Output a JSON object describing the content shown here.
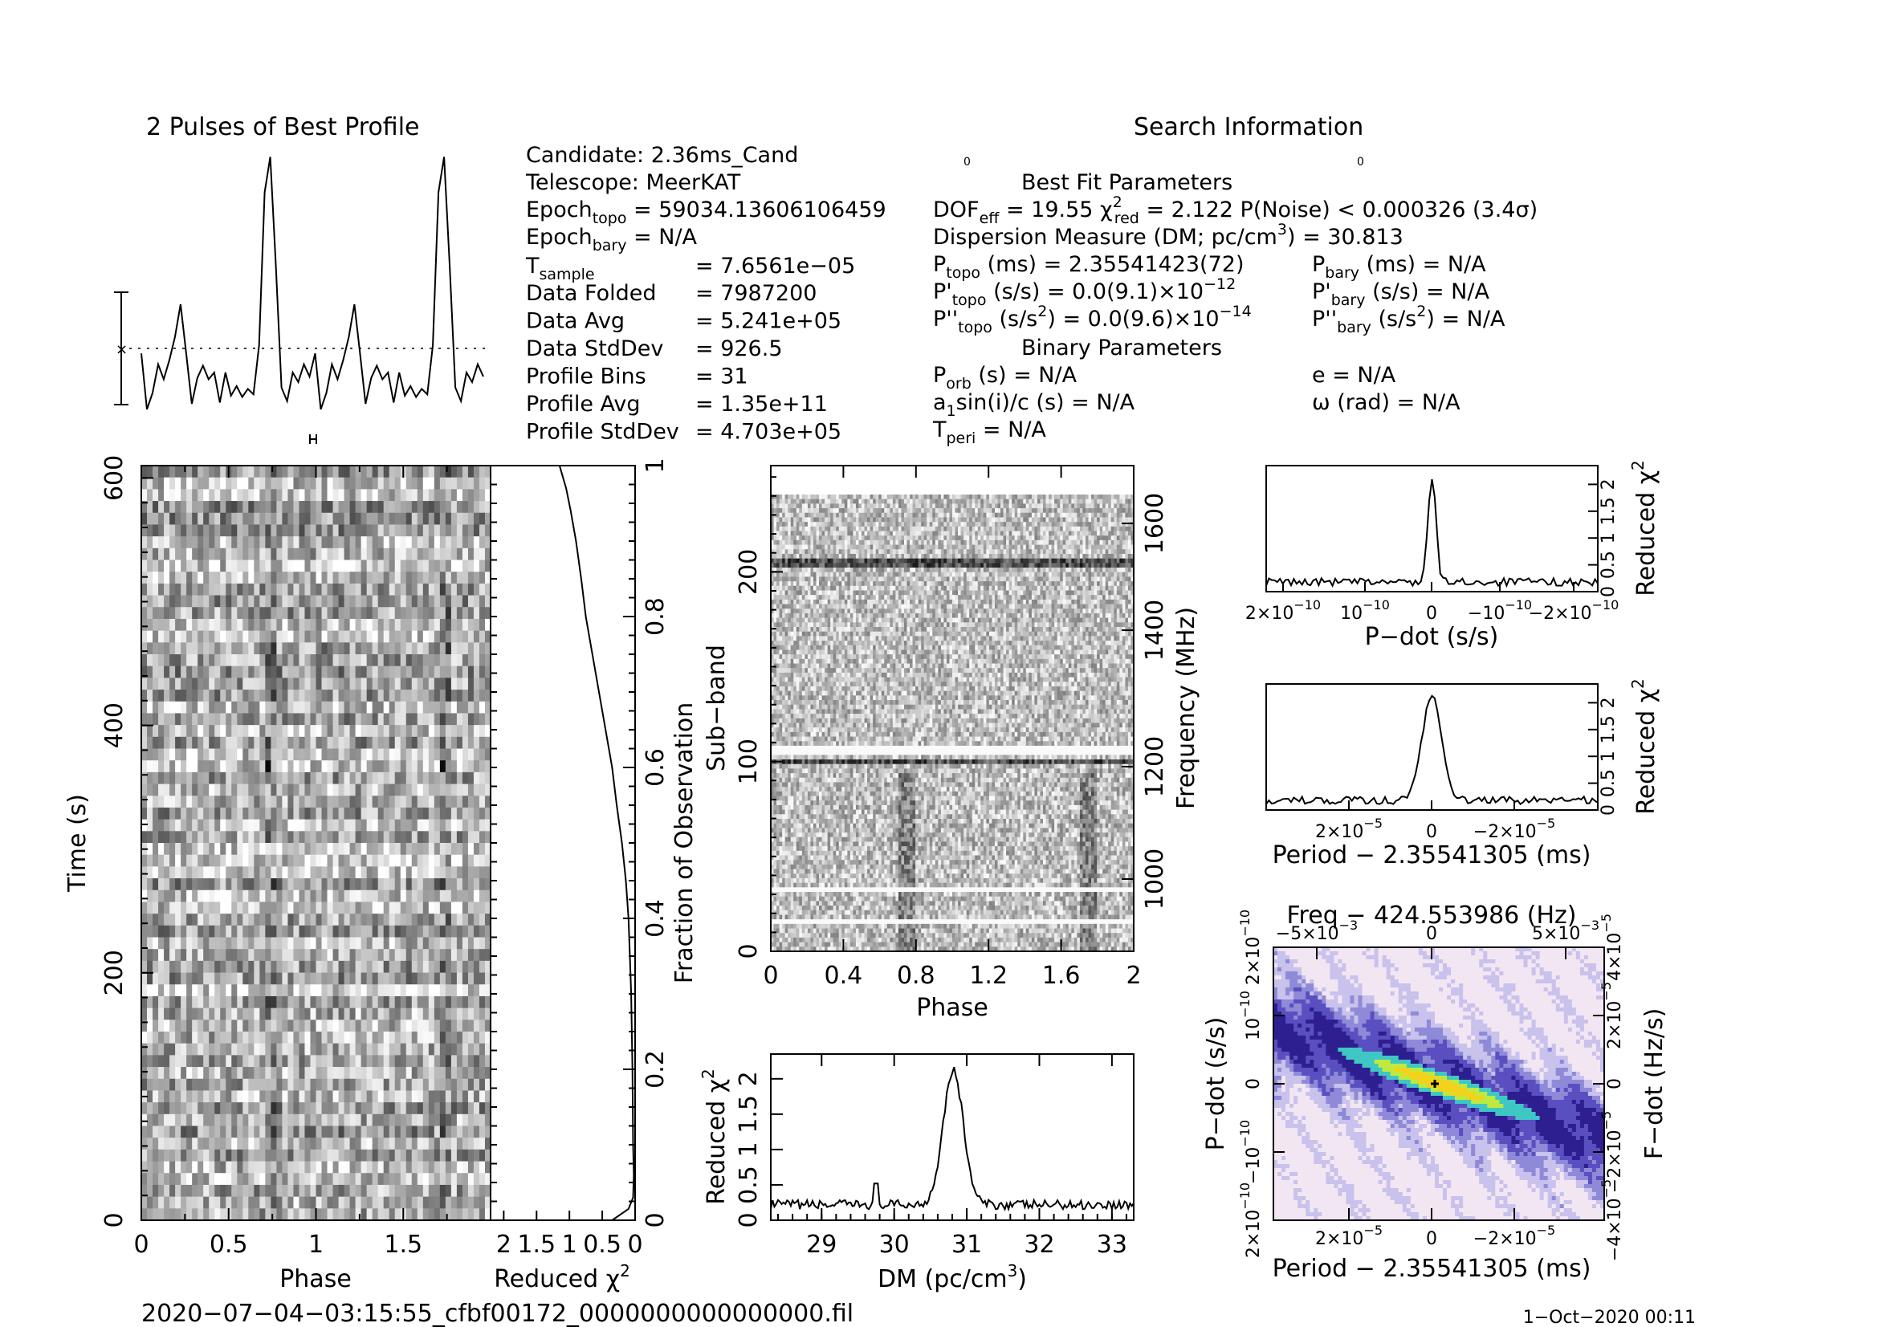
{
  "header": {
    "profile_title": "2 Pulses of Best Profile",
    "search_title": "Search Information",
    "best_fit_title": "Best Fit Parameters",
    "binary_title": "Binary Parameters",
    "overlap_left": "0",
    "overlap_right": "0"
  },
  "info": {
    "candidate": "Candidate:  2.36ms_Cand",
    "telescope": "Telescope:  MeerKAT",
    "epoch_topo": [
      "Epoch",
      "topo",
      " = 59034.13606106459"
    ],
    "epoch_bary": [
      "Epoch",
      "bary",
      " = N/A"
    ],
    "t_sample": [
      "T",
      "sample",
      "=  7.6561e−05"
    ],
    "rows": [
      {
        "label": "Data Folded",
        "value": "=  7987200"
      },
      {
        "label": "Data Avg",
        "value": "=  5.241e+05"
      },
      {
        "label": "Data StdDev",
        "value": "=  926.5"
      },
      {
        "label": "Profile Bins",
        "value": "=  31"
      },
      {
        "label": "Profile Avg",
        "value": "=  1.35e+11"
      },
      {
        "label": "Profile StdDev",
        "value": "=  4.703e+05"
      }
    ]
  },
  "fit": {
    "dof_a": "DOF",
    "dof_sub": "eff",
    "dof_b": " = 19.55  χ",
    "chi_sup": "2",
    "chi_sub": "red",
    "dof_c": " = 2.122  P(Noise) < 0.000326  (3.4σ)",
    "dm_a": "Dispersion Measure (DM; pc/cm",
    "dm_sup": "3",
    "dm_b": ") = 30.813",
    "ptopo_a": "P",
    "ptopo_sub": "topo",
    "ptopo_b": " (ms) =  2.35541423(72)",
    "pbary_a": "P",
    "pbary_sub": "bary",
    "pbary_b": " (ms) = N/A",
    "pdtopo_a": "P'",
    "pdtopo_sub": "topo",
    "pdtopo_b": " (s/s) = 0.0(9.1)×10",
    "pdtopo_sup": "−12",
    "pdbary_a": "P'",
    "pdbary_sub": "bary",
    "pdbary_b": " (s/s) = N/A",
    "pddtopo_a": "P''",
    "pddtopo_sub": "topo",
    "pddtopo_b": " (s/s",
    "pddtopo_sup1": "2",
    "pddtopo_c": ") = 0.0(9.6)×10",
    "pddtopo_sup2": "−14",
    "pddbary_a": "P''",
    "pddbary_sub": "bary",
    "pddbary_b": " (s/s",
    "pddbary_sup": "2",
    "pddbary_c": ") = N/A",
    "porb_a": "P",
    "porb_sub": "orb",
    "porb_b": " (s) = N/A",
    "e": "e = N/A",
    "a1_a": "a",
    "a1_sub": "1",
    "a1_b": "sin(i)/c (s) = N/A",
    "omega": "ω (rad) = N/A",
    "tperi_a": "T",
    "tperi_sub": "peri",
    "tperi_b": " = N/A"
  },
  "footer": {
    "filename": "2020−07−04−03:15:55_cfbf00172_0000000000000000.fil",
    "date": "1−Oct−2020 00:11"
  },
  "chart_data": [
    {
      "type": "line",
      "name": "profile",
      "title": "2 Pulses of Best Profile",
      "x_range": [
        0,
        2
      ],
      "series": [
        {
          "values": [
            0.44,
            0.03,
            0.15,
            0.36,
            0.25,
            0.39,
            0.56,
            0.8,
            0.44,
            0.07,
            0.26,
            0.35,
            0.25,
            0.3,
            0.08,
            0.3,
            0.13,
            0.2,
            0.12,
            0.18,
            0.14,
            0.5,
            1.62,
            1.88,
            1.08,
            0.19,
            0.09,
            0.3,
            0.23,
            0.36,
            0.27,
            0.44,
            0.03,
            0.15,
            0.36,
            0.25,
            0.39,
            0.56,
            0.8,
            0.44,
            0.07,
            0.26,
            0.35,
            0.25,
            0.3,
            0.08,
            0.3,
            0.13,
            0.2,
            0.12,
            0.18,
            0.14,
            0.5,
            1.62,
            1.88,
            1.08,
            0.19,
            0.09,
            0.3,
            0.23,
            0.36,
            0.27
          ]
        }
      ]
    },
    {
      "type": "heatmap",
      "name": "time-phase",
      "xlabel": "Phase",
      "ylabel": "Time (s)",
      "xlim": [
        0,
        2
      ],
      "ylim": [
        0,
        610
      ],
      "x_ticks": [
        "0",
        "0.5",
        "1",
        "1.5"
      ],
      "y_ticks": [
        "0",
        "200",
        "400",
        "600"
      ]
    },
    {
      "type": "line",
      "name": "chi2-vs-fraction",
      "xlabel": "Reduced χ",
      "xlabel_sup": "2",
      "ylabel": "Fraction of Observation",
      "x_ticks": [
        "2",
        "1.5",
        "1",
        "0.5",
        "0"
      ],
      "y_ticks": [
        "0.2",
        "0.4",
        "0.6",
        "0.8",
        "1"
      ],
      "xlim": [
        2.2,
        0
      ],
      "ylim": [
        0,
        1
      ],
      "points": [
        [
          0.35,
          0.0
        ],
        [
          0.1,
          0.015
        ],
        [
          0.03,
          0.03
        ],
        [
          0.02,
          0.06
        ],
        [
          0.03,
          0.1
        ],
        [
          0.04,
          0.2
        ],
        [
          0.06,
          0.3
        ],
        [
          0.08,
          0.35
        ],
        [
          0.1,
          0.4
        ],
        [
          0.14,
          0.45
        ],
        [
          0.2,
          0.5
        ],
        [
          0.28,
          0.55
        ],
        [
          0.35,
          0.6
        ],
        [
          0.45,
          0.65
        ],
        [
          0.55,
          0.7
        ],
        [
          0.65,
          0.75
        ],
        [
          0.75,
          0.8
        ],
        [
          0.82,
          0.85
        ],
        [
          0.9,
          0.9
        ],
        [
          0.98,
          0.94
        ],
        [
          1.05,
          0.97
        ],
        [
          1.15,
          1.0
        ]
      ]
    },
    {
      "type": "heatmap",
      "name": "subband-phase",
      "xlabel": "Phase",
      "ylabel": "Sub−band",
      "y2label": "Frequency (MHz)",
      "xlim": [
        0,
        2
      ],
      "ylim": [
        0,
        256
      ],
      "x_ticks": [
        "0",
        "0.4",
        "0.8",
        "1.2",
        "1.6",
        "2"
      ],
      "y_ticks": [
        "0",
        "100",
        "200"
      ],
      "y2_ticks": [
        "1000",
        "1200",
        "1400",
        "1600"
      ]
    },
    {
      "type": "line",
      "name": "dm-curve",
      "xlabel": "DM (pc/cm",
      "xlabel_sup": "3",
      "xlabel_end": ")",
      "ylabel": "Reduced χ",
      "ylabel_sup": "2",
      "xlim": [
        28.3,
        33.3
      ],
      "ylim": [
        0,
        2.35
      ],
      "x_ticks": [
        "29",
        "30",
        "31",
        "32",
        "33"
      ],
      "y_ticks": [
        "0",
        "0.5",
        "1",
        "1.5",
        "2"
      ],
      "peak_dm": 30.813,
      "peak_chi2": 2.12
    },
    {
      "type": "line",
      "name": "pdot-curve",
      "xlabel": "P−dot (s/s)",
      "ylabel": "Reduced χ",
      "ylabel_sup": "2",
      "x_ticks": [
        "2×10",
        "10",
        "0",
        "−10",
        "−2×10"
      ],
      "x_tick_sup": "−10",
      "y_ticks": [
        "0",
        "0.5",
        "1",
        "1.5",
        "2"
      ],
      "ylim": [
        0,
        2.35
      ],
      "peak_chi2": 2.12
    },
    {
      "type": "line",
      "name": "period-curve",
      "xlabel": "Period − 2.35541305 (ms)",
      "ylabel": "Reduced χ",
      "ylabel_sup": "2",
      "x_ticks": [
        "2×10",
        "0",
        "−2×10"
      ],
      "x_tick_sup": "−5",
      "y_ticks": [
        "0",
        "0.5",
        "1",
        "1.5",
        "2"
      ],
      "ylim": [
        0,
        2.35
      ],
      "peak_chi2": 2.12
    },
    {
      "type": "heatmap",
      "name": "p-pdot-plane",
      "title": "Freq − 424.553986 (Hz)",
      "xlabel": "Period − 2.35541305 (ms)",
      "ylabel": "P−dot (s/s)",
      "y2label": "F−dot (Hz/s)",
      "x_ticks": [
        "2×10",
        "0",
        "−2×10"
      ],
      "x_tick_sup": "−5",
      "top_ticks": [
        "−5×10",
        "0",
        "5×10"
      ],
      "top_tick_sup": "−3",
      "y_ticks": [
        "2×10",
        "10",
        "0",
        "−10",
        "2×10"
      ],
      "y_tick_sup": "−10",
      "y2_ticks": [
        "−4×10",
        "−2×10",
        "0",
        "2×10",
        "4×10"
      ],
      "y2_tick_sup": "−5",
      "colors": [
        "#2d1f8f",
        "#5a4fc0",
        "#8f8ad8",
        "#c8c2ec",
        "#f3e6f3",
        "#3fc7c4",
        "#bfe93f",
        "#f2d21b"
      ]
    }
  ]
}
